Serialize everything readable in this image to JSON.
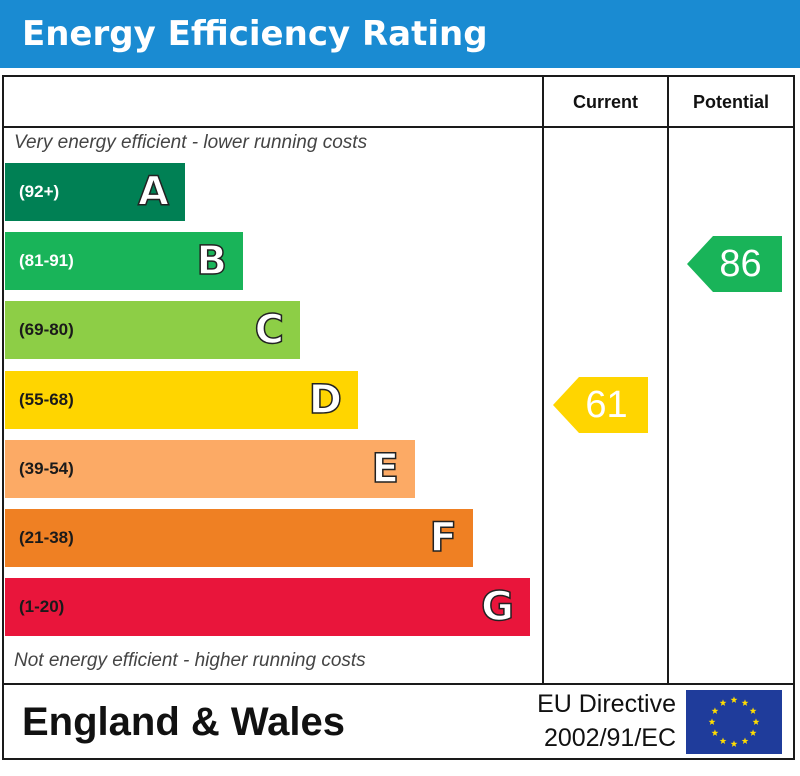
{
  "title": "Energy Efficiency Rating",
  "columns": {
    "current": "Current",
    "potential": "Potential"
  },
  "notes": {
    "top": "Very energy efficient - lower running costs",
    "bottom": "Not energy efficient - higher running costs"
  },
  "chart_data": {
    "type": "bar",
    "bands": [
      {
        "range": "(92+)",
        "letter": "A",
        "color": "#008054",
        "min": 92,
        "max": 100
      },
      {
        "range": "(81-91)",
        "letter": "B",
        "color": "#19b459",
        "min": 81,
        "max": 91
      },
      {
        "range": "(69-80)",
        "letter": "C",
        "color": "#8dce46",
        "min": 69,
        "max": 80
      },
      {
        "range": "(55-68)",
        "letter": "D",
        "color": "#ffd500",
        "min": 55,
        "max": 68
      },
      {
        "range": "(39-54)",
        "letter": "E",
        "color": "#fcaa65",
        "min": 39,
        "max": 54
      },
      {
        "range": "(21-38)",
        "letter": "F",
        "color": "#ef8023",
        "min": 21,
        "max": 38
      },
      {
        "range": "(1-20)",
        "letter": "G",
        "color": "#e9153b",
        "min": 1,
        "max": 20
      }
    ],
    "current": {
      "value": 61,
      "band": "D",
      "color": "#ffd500"
    },
    "potential": {
      "value": 86,
      "band": "B",
      "color": "#19b459"
    }
  },
  "footer": {
    "country": "England & Wales",
    "directive_line1": "EU Directive",
    "directive_line2": "2002/91/EC",
    "flag_icon": "eu-flag-icon",
    "flag_color": "#1f3c9b",
    "star_color": "#ffdd00"
  }
}
